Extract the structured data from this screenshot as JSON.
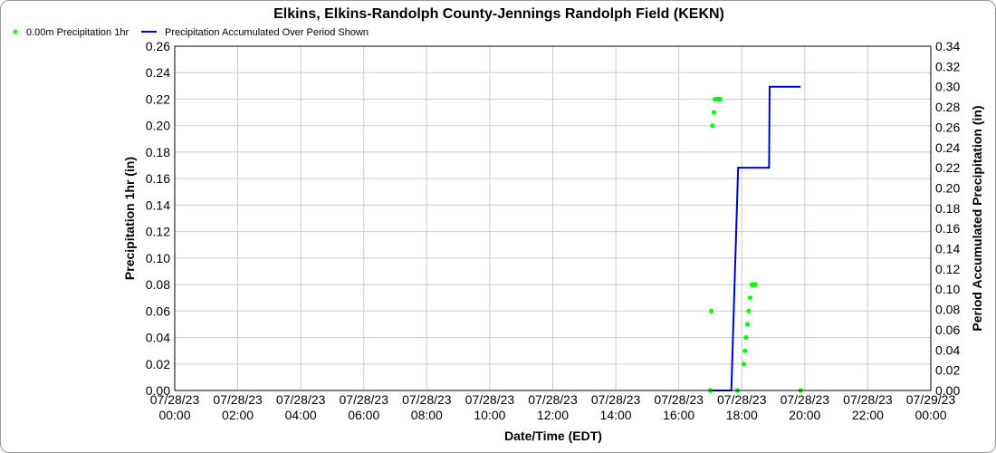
{
  "chart_data": {
    "type": "line",
    "title": "Elkins, Elkins-Randolph County-Jennings Randolph Field (KEKN)",
    "xlabel": "Date/Time (EDT)",
    "ylabel": "Precipitation 1hr (in)",
    "y2label": "Period Accumulated Precipitation (in)",
    "xlim": [
      "07/28/23 00:00",
      "07/29/23 00:00"
    ],
    "ylim": [
      0,
      0.26
    ],
    "y2lim": [
      0,
      0.34
    ],
    "grid": true,
    "legend_placement": "top-left",
    "x_ticks": [
      {
        "date": "07/28/23",
        "time": "00:00"
      },
      {
        "date": "07/28/23",
        "time": "02:00"
      },
      {
        "date": "07/28/23",
        "time": "04:00"
      },
      {
        "date": "07/28/23",
        "time": "06:00"
      },
      {
        "date": "07/28/23",
        "time": "08:00"
      },
      {
        "date": "07/28/23",
        "time": "10:00"
      },
      {
        "date": "07/28/23",
        "time": "12:00"
      },
      {
        "date": "07/28/23",
        "time": "14:00"
      },
      {
        "date": "07/28/23",
        "time": "16:00"
      },
      {
        "date": "07/28/23",
        "time": "18:00"
      },
      {
        "date": "07/28/23",
        "time": "20:00"
      },
      {
        "date": "07/28/23",
        "time": "22:00"
      },
      {
        "date": "07/29/23",
        "time": "00:00"
      }
    ],
    "y_ticks": [
      "0.00",
      "0.02",
      "0.04",
      "0.06",
      "0.08",
      "0.10",
      "0.12",
      "0.14",
      "0.16",
      "0.18",
      "0.20",
      "0.22",
      "0.24",
      "0.26"
    ],
    "y2_ticks": [
      "0.00",
      "0.02",
      "0.04",
      "0.06",
      "0.08",
      "0.10",
      "0.12",
      "0.14",
      "0.16",
      "0.18",
      "0.20",
      "0.22",
      "0.24",
      "0.26",
      "0.28",
      "0.30",
      "0.32",
      "0.34"
    ],
    "series": [
      {
        "name": "0.00m Precipitation 1hr",
        "kind": "scatter",
        "color": "#00ff00",
        "axis": "left",
        "points": [
          {
            "x": "07/28/23 17:00",
            "y": 0.0
          },
          {
            "x": "07/28/23 17:02",
            "y": 0.06
          },
          {
            "x": "07/28/23 17:04",
            "y": 0.2
          },
          {
            "x": "07/28/23 17:07",
            "y": 0.21
          },
          {
            "x": "07/28/23 17:09",
            "y": 0.22
          },
          {
            "x": "07/28/23 17:12",
            "y": 0.22
          },
          {
            "x": "07/28/23 17:14",
            "y": 0.22
          },
          {
            "x": "07/28/23 17:17",
            "y": 0.22
          },
          {
            "x": "07/28/23 17:19",
            "y": 0.22
          },
          {
            "x": "07/28/23 17:52",
            "y": 0.0
          },
          {
            "x": "07/28/23 18:04",
            "y": 0.02
          },
          {
            "x": "07/28/23 18:06",
            "y": 0.03
          },
          {
            "x": "07/28/23 18:08",
            "y": 0.04
          },
          {
            "x": "07/28/23 18:11",
            "y": 0.05
          },
          {
            "x": "07/28/23 18:13",
            "y": 0.06
          },
          {
            "x": "07/28/23 18:16",
            "y": 0.07
          },
          {
            "x": "07/28/23 18:19",
            "y": 0.08
          },
          {
            "x": "07/28/23 18:21",
            "y": 0.08
          },
          {
            "x": "07/28/23 18:24",
            "y": 0.08
          },
          {
            "x": "07/28/23 18:26",
            "y": 0.08
          },
          {
            "x": "07/28/23 19:52",
            "y": 0.0
          }
        ]
      },
      {
        "name": "Precipitation Accumulated Over Period Shown",
        "kind": "line",
        "color": "#0000cc",
        "axis": "right",
        "points": [
          {
            "x": "07/28/23 17:00",
            "y": 0.0
          },
          {
            "x": "07/28/23 17:40",
            "y": 0.0
          },
          {
            "x": "07/28/23 17:53",
            "y": 0.22
          },
          {
            "x": "07/28/23 18:52",
            "y": 0.22
          },
          {
            "x": "07/28/23 18:53",
            "y": 0.3
          },
          {
            "x": "07/28/23 19:52",
            "y": 0.3
          }
        ]
      }
    ]
  }
}
